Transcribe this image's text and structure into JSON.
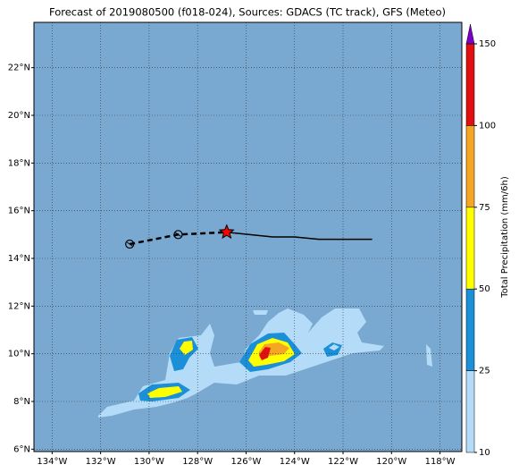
{
  "chart_data": {
    "type": "map",
    "title": "Forecast of 2019080500 (f018-024), Sources: GDACS (TC track), GFS (Meteo)",
    "xlim": [
      -134.75,
      -117.1
    ],
    "ylim": [
      5.9,
      23.9
    ],
    "xticks": [
      {
        "value": -134,
        "label": "134°W"
      },
      {
        "value": -132,
        "label": "132°W"
      },
      {
        "value": -130,
        "label": "130°W"
      },
      {
        "value": -128,
        "label": "128°W"
      },
      {
        "value": -126,
        "label": "126°W"
      },
      {
        "value": -124,
        "label": "124°W"
      },
      {
        "value": -122,
        "label": "122°W"
      },
      {
        "value": -120,
        "label": "120°W"
      },
      {
        "value": -118,
        "label": "118°W"
      }
    ],
    "yticks": [
      {
        "value": 6,
        "label": "6°N"
      },
      {
        "value": 8,
        "label": "8°N"
      },
      {
        "value": 10,
        "label": "10°N"
      },
      {
        "value": 12,
        "label": "12°N"
      },
      {
        "value": 14,
        "label": "14°N"
      },
      {
        "value": 16,
        "label": "16°N"
      },
      {
        "value": 18,
        "label": "18°N"
      },
      {
        "value": 20,
        "label": "20°N"
      },
      {
        "value": 22,
        "label": "22°N"
      }
    ],
    "grid": true,
    "ocean_color": "#79a9d0",
    "colorbar": {
      "label": "Total Precipitation (mm/6h)",
      "levels": [
        10,
        25,
        50,
        75,
        100,
        150
      ],
      "colors": [
        "#b4dcf8",
        "#1b8fd8",
        "#ffff00",
        "#f5a623",
        "#e01010"
      ],
      "extend_color": "#7d00c8"
    },
    "track": {
      "past": {
        "lon": [
          -130.8,
          -128.8,
          -126.8
        ],
        "lat": [
          14.6,
          15.0,
          15.1
        ]
      },
      "forecast": {
        "lon": [
          -126.8,
          -124.9,
          -124.0,
          -123.0,
          -120.8
        ],
        "lat": [
          15.1,
          14.9,
          14.9,
          14.8,
          14.8
        ]
      },
      "current": {
        "lon": -126.8,
        "lat": 15.1
      }
    }
  }
}
